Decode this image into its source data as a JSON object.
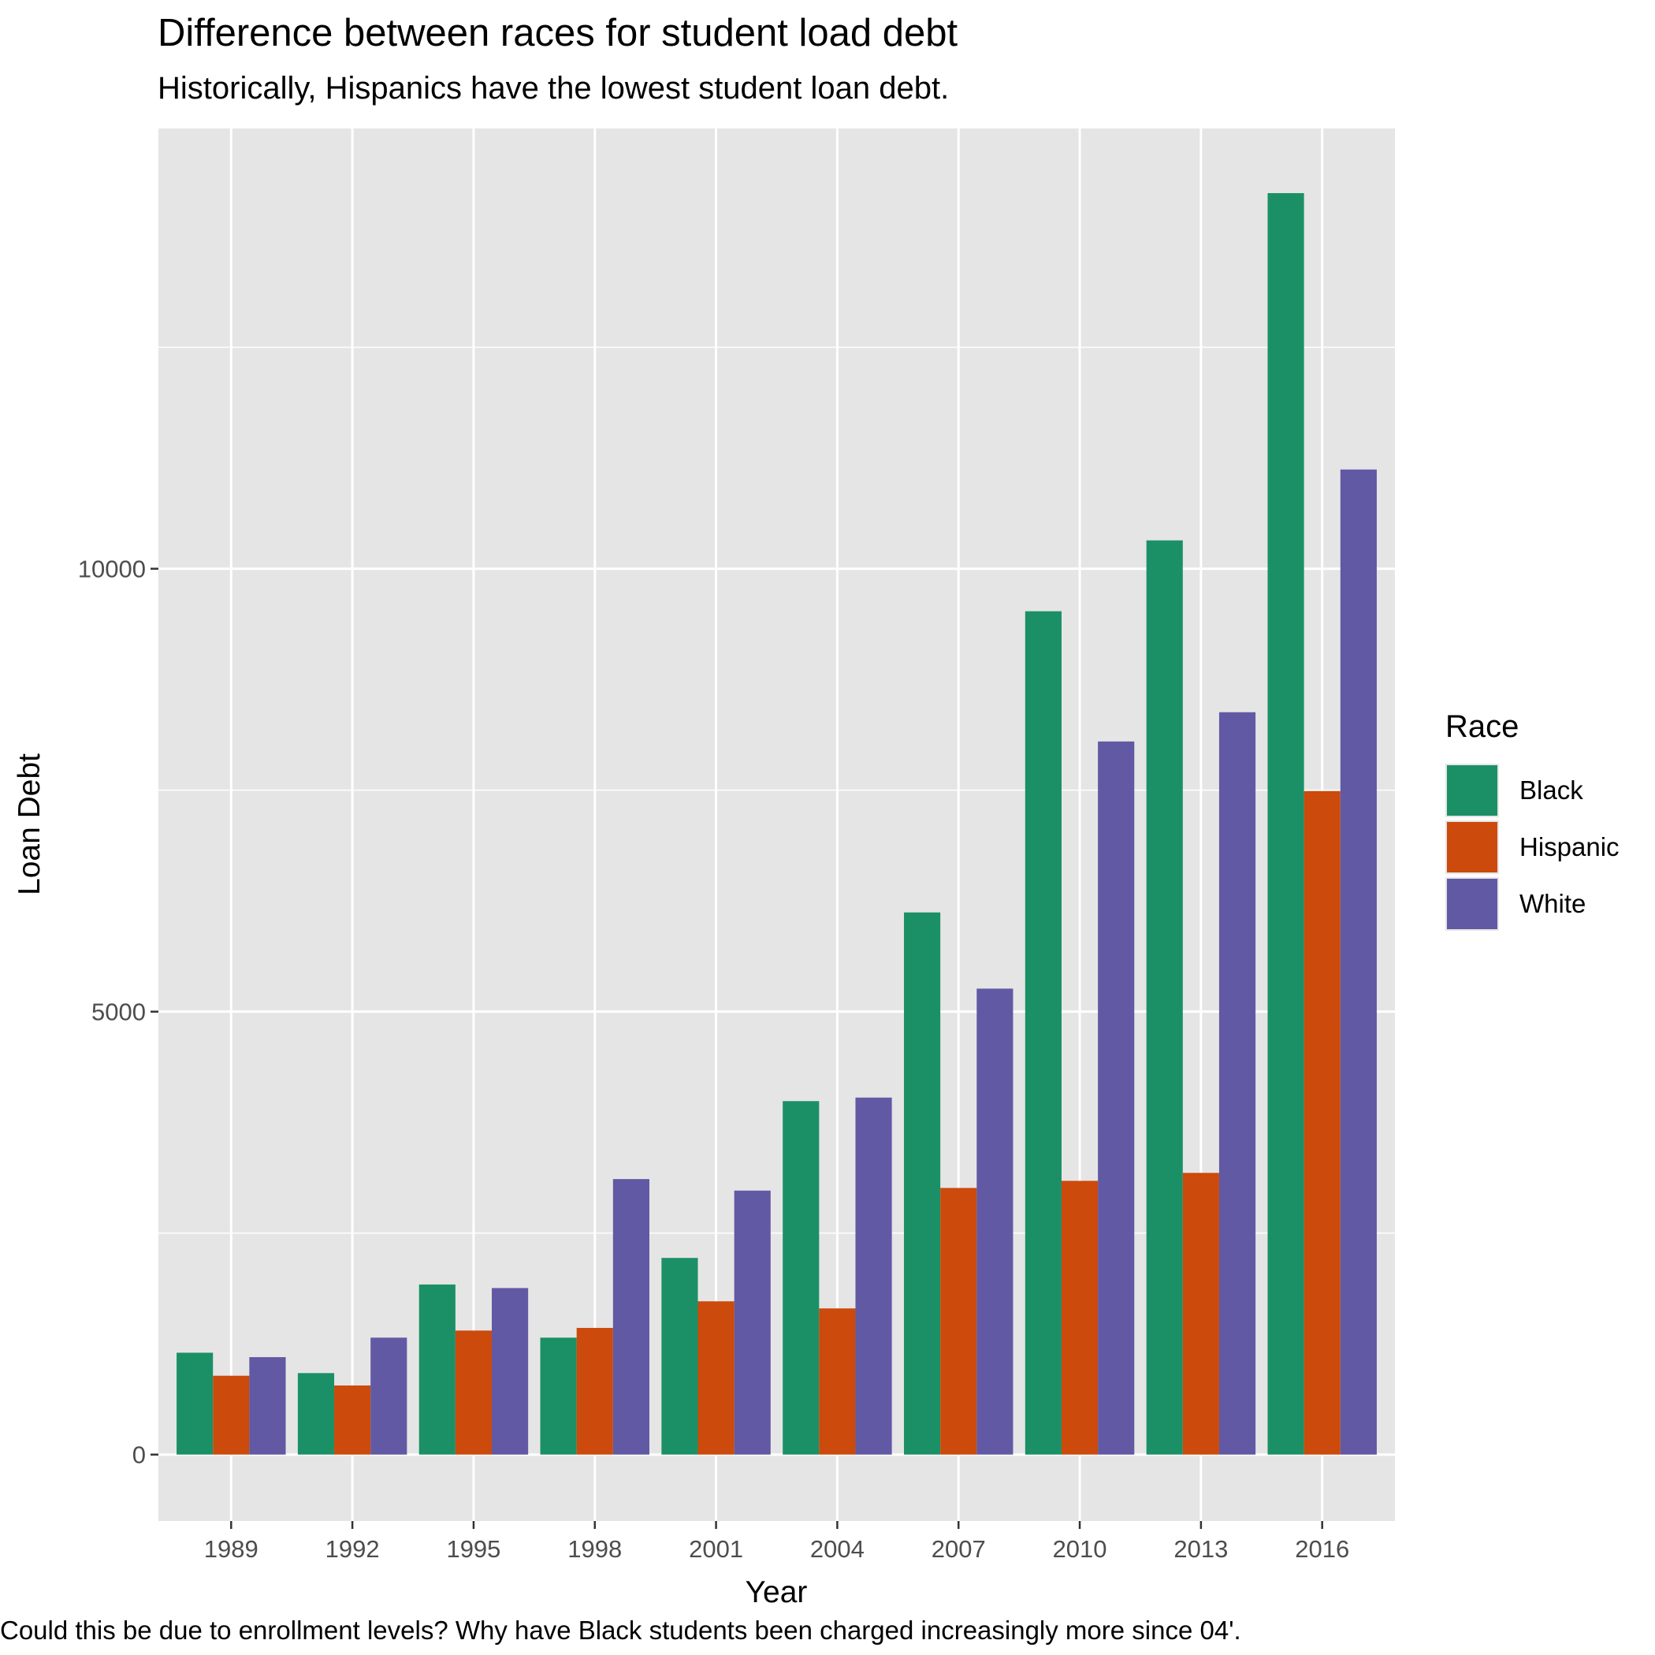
{
  "title": "Difference between races for student load debt",
  "subtitle": "Historically, Hispanics have the lowest student loan debt.",
  "caption": "Could this be due to enrollment levels? Why have Black students been charged increasingly more since 04'.",
  "legend": {
    "title": "Race",
    "items": [
      {
        "label": "Black",
        "color": "#1b9066"
      },
      {
        "label": "Hispanic",
        "color": "#cc4a0c"
      },
      {
        "label": "White",
        "color": "#6159a4"
      }
    ]
  },
  "chart_data": {
    "type": "bar",
    "title": "Difference between races for student load debt",
    "subtitle": "Historically, Hispanics have the lowest student loan debt.",
    "xlabel": "Year",
    "ylabel": "Loan Debt",
    "categories": [
      "1989",
      "1992",
      "1995",
      "1998",
      "2001",
      "2004",
      "2007",
      "2010",
      "2013",
      "2016"
    ],
    "series": [
      {
        "name": "Black",
        "color": "#1b9066",
        "values": [
          1150,
          920,
          1920,
          1320,
          2220,
          3990,
          6120,
          9520,
          10320,
          14240
        ]
      },
      {
        "name": "Hispanic",
        "color": "#cc4a0c",
        "values": [
          890,
          780,
          1400,
          1430,
          1730,
          1650,
          3010,
          3090,
          3180,
          7490
        ]
      },
      {
        "name": "White",
        "color": "#6159a4",
        "values": [
          1100,
          1320,
          1880,
          3110,
          2980,
          4030,
          5260,
          8050,
          8380,
          11120
        ]
      }
    ],
    "yticks": [
      0,
      5000,
      10000
    ],
    "ytick_labels": [
      "0",
      "5000",
      "10000"
    ],
    "ylim": [
      -750,
      14970
    ],
    "grid": true,
    "legend_position": "right"
  }
}
